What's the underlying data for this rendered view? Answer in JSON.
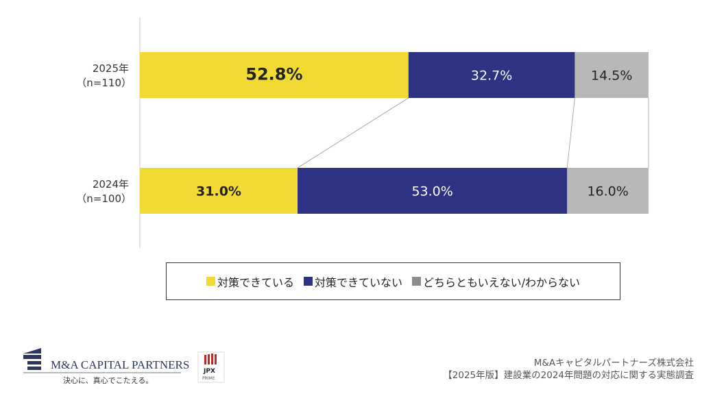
{
  "chart_data": {
    "type": "bar",
    "orientation": "horizontal",
    "stacked": true,
    "percent": true,
    "categories": [
      {
        "year": "2025年",
        "n": "（n=110）"
      },
      {
        "year": "2024年",
        "n": "（n=100）"
      }
    ],
    "series": [
      {
        "name": "対策できている",
        "color": "#f2da34",
        "values": [
          52.8,
          31.0
        ],
        "labels": [
          "52.8%",
          "31.0%"
        ]
      },
      {
        "name": "対策できていない",
        "color": "#2d3282",
        "values": [
          32.7,
          53.0
        ],
        "labels": [
          "32.7%",
          "53.0%"
        ]
      },
      {
        "name": "どちらともいえない/わからない",
        "color": "#b8b8b8",
        "values": [
          14.5,
          16.0
        ],
        "labels": [
          "14.5%",
          "16.0%"
        ]
      }
    ],
    "xlim": [
      0,
      100
    ],
    "legend": "bottom",
    "grid": false
  },
  "footer": {
    "company": "M&Aキャピタルパートナーズ株式会社",
    "survey": "【2025年版】建設業の2024年問題の対応に関する実態調査"
  },
  "logo": {
    "name": "M&A CAPITAL PARTNERS",
    "tagline": "決心に、真心でこたえる。",
    "jpx": "JPX",
    "jpx_sub": "PRIME"
  }
}
